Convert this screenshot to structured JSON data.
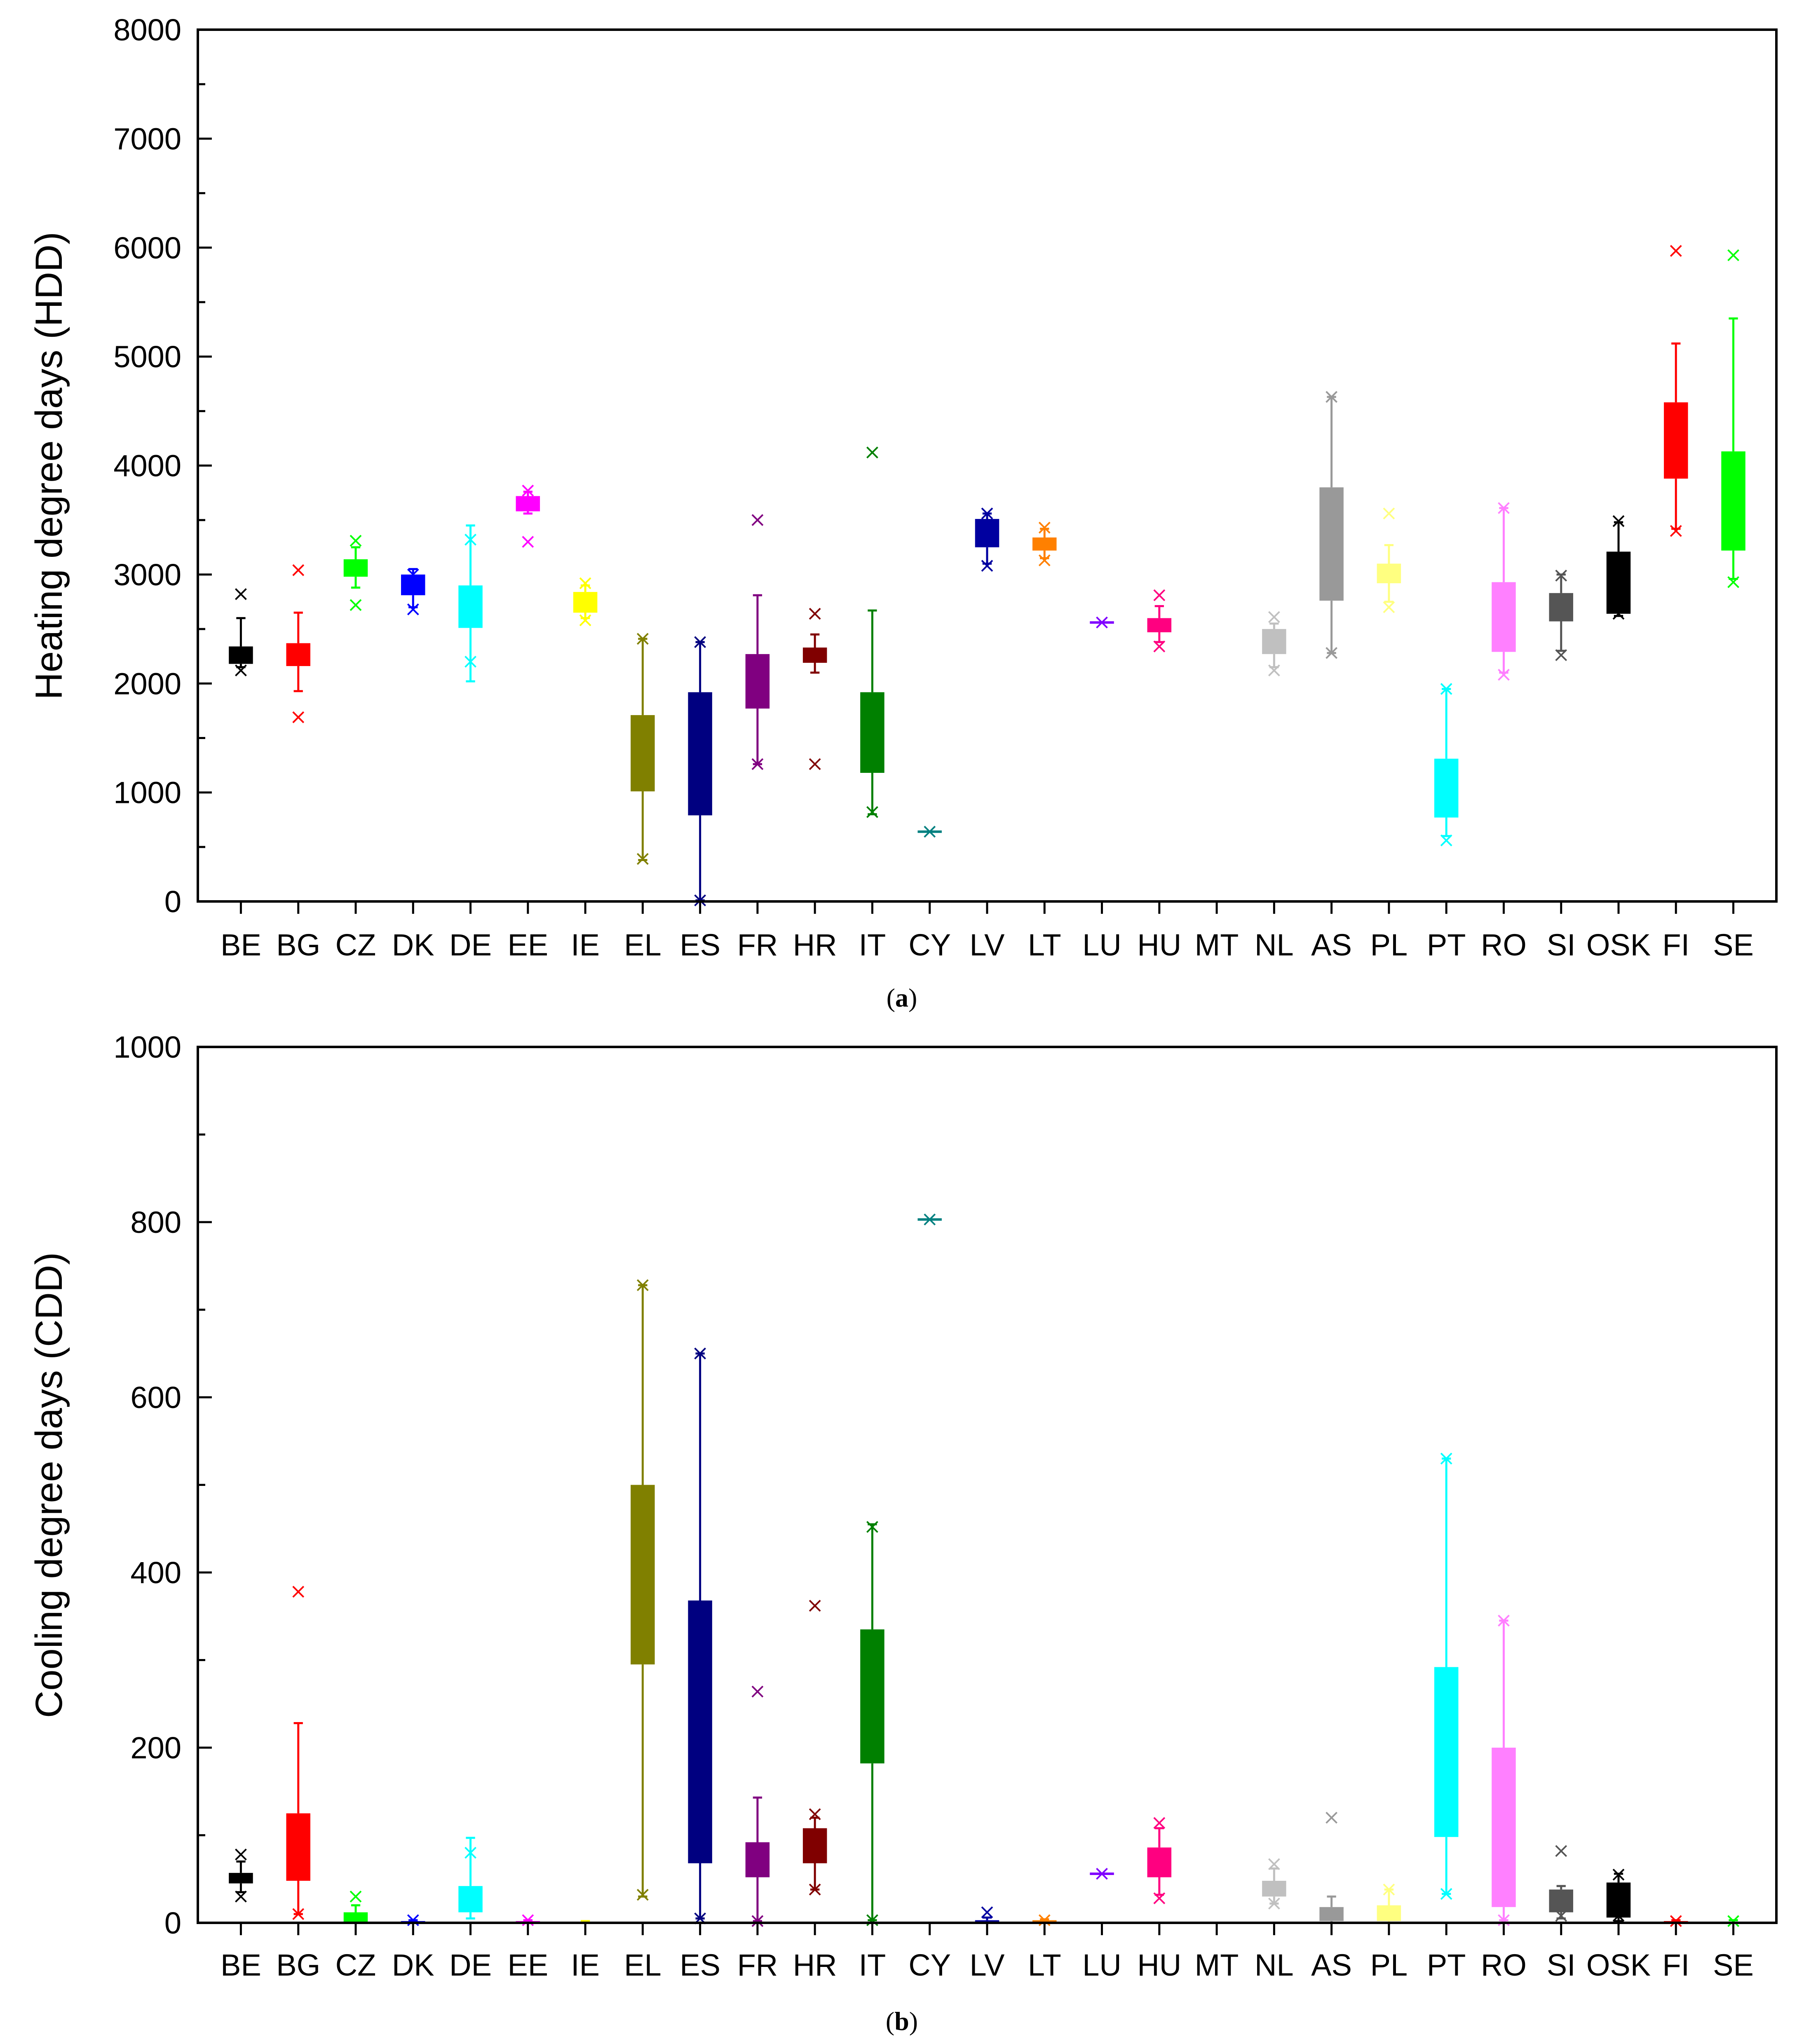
{
  "colors": {
    "BE": "#000000",
    "BG": "#ff0000",
    "CZ": "#00ff00",
    "DK": "#0000ff",
    "DE": "#00ffff",
    "EE": "#ff00ff",
    "IE": "#ffff00",
    "EL": "#808000",
    "ES": "#000080",
    "FR": "#800080",
    "HR": "#800000",
    "IT": "#008000",
    "CY": "#008080",
    "LV": "#0000a0",
    "LT": "#ff8000",
    "LU": "#8000ff",
    "HU": "#ff0080",
    "MT": "#808080",
    "NL": "#c0c0c0",
    "AS": "#999999",
    "PL": "#ffff80",
    "PT": "#00ffff",
    "RO": "#ff80ff",
    "SI": "#555555",
    "OSK": "#000000",
    "FI": "#ff0000",
    "SE": "#00ff00"
  },
  "chart_data": [
    {
      "type": "box",
      "caption_open": "(",
      "caption_bold": "a",
      "caption_close": ")",
      "ylabel": "Heating degree days (HDD)",
      "ylim": [
        0,
        8000
      ],
      "yticks": [
        "0",
        "1000",
        "2000",
        "3000",
        "4000",
        "5000",
        "6000",
        "7000",
        "8000"
      ],
      "categories": [
        "BE",
        "BG",
        "CZ",
        "DK",
        "DE",
        "EE",
        "IE",
        "EL",
        "ES",
        "FR",
        "HR",
        "IT",
        "CY",
        "LV",
        "LT",
        "LU",
        "HU",
        "MT",
        "NL",
        "AS",
        "PL",
        "PT",
        "RO",
        "SI",
        "OSK",
        "FI",
        "SE"
      ],
      "series": [
        {
          "cat": "BE",
          "q1": 2180,
          "q3": 2340,
          "wlo": 2150,
          "whi": 2600,
          "outliers": [
            2820,
            2120
          ]
        },
        {
          "cat": "BG",
          "q1": 2160,
          "q3": 2370,
          "wlo": 1930,
          "whi": 2650,
          "outliers": [
            3040,
            1690
          ]
        },
        {
          "cat": "CZ",
          "q1": 2980,
          "q3": 3140,
          "wlo": 2880,
          "whi": 3250,
          "outliers": [
            3310,
            2720
          ]
        },
        {
          "cat": "DK",
          "q1": 2810,
          "q3": 3000,
          "wlo": 2700,
          "whi": 3050,
          "outliers": [
            3000,
            2680
          ]
        },
        {
          "cat": "DE",
          "q1": 2510,
          "q3": 2900,
          "wlo": 2020,
          "whi": 3450,
          "outliers": [
            3320,
            2200
          ]
        },
        {
          "cat": "EE",
          "q1": 3580,
          "q3": 3720,
          "wlo": 3560,
          "whi": 3760,
          "outliers": [
            3770,
            3300
          ]
        },
        {
          "cat": "IE",
          "q1": 2650,
          "q3": 2840,
          "wlo": 2600,
          "whi": 2900,
          "outliers": [
            2920,
            2580
          ]
        },
        {
          "cat": "EL",
          "q1": 1010,
          "q3": 1710,
          "wlo": 380,
          "whi": 2410,
          "outliers": [
            2410,
            390
          ]
        },
        {
          "cat": "ES",
          "q1": 790,
          "q3": 1920,
          "wlo": 10,
          "whi": 2380,
          "outliers": [
            2380,
            10
          ]
        },
        {
          "cat": "FR",
          "q1": 1770,
          "q3": 2270,
          "wlo": 1260,
          "whi": 2810,
          "outliers": [
            3500,
            1260
          ]
        },
        {
          "cat": "HR",
          "q1": 2190,
          "q3": 2330,
          "wlo": 2100,
          "whi": 2450,
          "outliers": [
            2640,
            1260
          ]
        },
        {
          "cat": "IT",
          "q1": 1180,
          "q3": 1920,
          "wlo": 800,
          "whi": 2670,
          "outliers": [
            4120,
            820
          ]
        },
        {
          "cat": "CY",
          "q1": 640,
          "q3": 640,
          "wlo": 640,
          "whi": 640,
          "outliers": [
            640
          ]
        },
        {
          "cat": "LV",
          "q1": 3250,
          "q3": 3510,
          "wlo": 3100,
          "whi": 3560,
          "outliers": [
            3560,
            3080
          ]
        },
        {
          "cat": "LT",
          "q1": 3220,
          "q3": 3340,
          "wlo": 3150,
          "whi": 3420,
          "outliers": [
            3430,
            3130
          ]
        },
        {
          "cat": "LU",
          "q1": 2560,
          "q3": 2560,
          "wlo": 2560,
          "whi": 2560,
          "outliers": [
            2560
          ]
        },
        {
          "cat": "HU",
          "q1": 2470,
          "q3": 2600,
          "wlo": 2380,
          "whi": 2710,
          "outliers": [
            2810,
            2340
          ]
        },
        {
          "cat": "MT",
          "q1": null,
          "q3": null,
          "wlo": null,
          "whi": null,
          "outliers": []
        },
        {
          "cat": "NL",
          "q1": 2270,
          "q3": 2500,
          "wlo": 2150,
          "whi": 2550,
          "outliers": [
            2610,
            2120
          ]
        },
        {
          "cat": "AS",
          "q1": 2760,
          "q3": 3800,
          "wlo": 2280,
          "whi": 4630,
          "outliers": [
            4630,
            2280
          ]
        },
        {
          "cat": "PL",
          "q1": 2920,
          "q3": 3100,
          "wlo": 2750,
          "whi": 3270,
          "outliers": [
            3560,
            2700
          ]
        },
        {
          "cat": "PT",
          "q1": 770,
          "q3": 1310,
          "wlo": 600,
          "whi": 1950,
          "outliers": [
            1950,
            560
          ]
        },
        {
          "cat": "RO",
          "q1": 2290,
          "q3": 2930,
          "wlo": 2100,
          "whi": 3610,
          "outliers": [
            3610,
            2080
          ]
        },
        {
          "cat": "SI",
          "q1": 2570,
          "q3": 2830,
          "wlo": 2300,
          "whi": 3000,
          "outliers": [
            2990,
            2260
          ]
        },
        {
          "cat": "OSK",
          "q1": 2640,
          "q3": 3210,
          "wlo": 2620,
          "whi": 3480,
          "outliers": [
            3490,
            2640
          ]
        },
        {
          "cat": "FI",
          "q1": 3880,
          "q3": 4580,
          "wlo": 3420,
          "whi": 5120,
          "outliers": [
            5970,
            3400
          ]
        },
        {
          "cat": "SE",
          "q1": 3220,
          "q3": 4130,
          "wlo": 2960,
          "whi": 5350,
          "outliers": [
            5930,
            2930
          ]
        }
      ]
    },
    {
      "type": "box",
      "caption_open": "(",
      "caption_bold": "b",
      "caption_close": ")",
      "ylabel": "Cooling degree days (CDD)",
      "ylim": [
        0,
        1000
      ],
      "yticks": [
        "0",
        "200",
        "400",
        "600",
        "800",
        "1000"
      ],
      "categories": [
        "BE",
        "BG",
        "CZ",
        "DK",
        "DE",
        "EE",
        "IE",
        "EL",
        "ES",
        "FR",
        "HR",
        "IT",
        "CY",
        "LV",
        "LT",
        "LU",
        "HU",
        "MT",
        "NL",
        "AS",
        "PL",
        "PT",
        "RO",
        "SI",
        "OSK",
        "FI",
        "SE"
      ],
      "series": [
        {
          "cat": "BE",
          "q1": 45,
          "q3": 57,
          "wlo": 35,
          "whi": 70,
          "outliers": [
            78,
            30
          ]
        },
        {
          "cat": "BG",
          "q1": 48,
          "q3": 125,
          "wlo": 10,
          "whi": 228,
          "outliers": [
            378,
            10
          ]
        },
        {
          "cat": "CZ",
          "q1": 1,
          "q3": 12,
          "wlo": 0,
          "whi": 20,
          "outliers": [
            30
          ]
        },
        {
          "cat": "DK",
          "q1": 0,
          "q3": 2,
          "wlo": 0,
          "whi": 3,
          "outliers": [
            3
          ]
        },
        {
          "cat": "DE",
          "q1": 12,
          "q3": 42,
          "wlo": 5,
          "whi": 97,
          "outliers": [
            80
          ]
        },
        {
          "cat": "EE",
          "q1": 0,
          "q3": 2,
          "wlo": 0,
          "whi": 3,
          "outliers": [
            3
          ]
        },
        {
          "cat": "IE",
          "q1": 0,
          "q3": 1,
          "wlo": 0,
          "whi": 2,
          "outliers": []
        },
        {
          "cat": "EL",
          "q1": 295,
          "q3": 500,
          "wlo": 30,
          "whi": 728,
          "outliers": [
            728,
            32
          ]
        },
        {
          "cat": "ES",
          "q1": 68,
          "q3": 368,
          "wlo": 5,
          "whi": 650,
          "outliers": [
            650,
            5
          ]
        },
        {
          "cat": "FR",
          "q1": 52,
          "q3": 92,
          "wlo": 2,
          "whi": 143,
          "outliers": [
            264,
            2
          ]
        },
        {
          "cat": "HR",
          "q1": 68,
          "q3": 108,
          "wlo": 38,
          "whi": 120,
          "outliers": [
            362,
            124,
            38
          ]
        },
        {
          "cat": "IT",
          "q1": 182,
          "q3": 335,
          "wlo": 3,
          "whi": 455,
          "outliers": [
            452,
            3
          ]
        },
        {
          "cat": "CY",
          "q1": 803,
          "q3": 803,
          "wlo": 803,
          "whi": 803,
          "outliers": [
            803
          ]
        },
        {
          "cat": "LV",
          "q1": 0,
          "q3": 3,
          "wlo": 0,
          "whi": 6,
          "outliers": [
            12
          ]
        },
        {
          "cat": "LT",
          "q1": 0,
          "q3": 3,
          "wlo": 0,
          "whi": 4,
          "outliers": [
            3
          ]
        },
        {
          "cat": "LU",
          "q1": 56,
          "q3": 56,
          "wlo": 56,
          "whi": 56,
          "outliers": [
            56
          ]
        },
        {
          "cat": "HU",
          "q1": 52,
          "q3": 86,
          "wlo": 32,
          "whi": 108,
          "outliers": [
            114,
            28
          ]
        },
        {
          "cat": "MT",
          "q1": null,
          "q3": null,
          "wlo": null,
          "whi": null,
          "outliers": []
        },
        {
          "cat": "NL",
          "q1": 30,
          "q3": 48,
          "wlo": 22,
          "whi": 62,
          "outliers": [
            67,
            22
          ]
        },
        {
          "cat": "AS",
          "q1": 2,
          "q3": 18,
          "wlo": 0,
          "whi": 30,
          "outliers": [
            120
          ]
        },
        {
          "cat": "PL",
          "q1": 2,
          "q3": 20,
          "wlo": 0,
          "whi": 38,
          "outliers": [
            38
          ]
        },
        {
          "cat": "PT",
          "q1": 98,
          "q3": 292,
          "wlo": 33,
          "whi": 530,
          "outliers": [
            530,
            33
          ]
        },
        {
          "cat": "RO",
          "q1": 18,
          "q3": 200,
          "wlo": 3,
          "whi": 345,
          "outliers": [
            345,
            3
          ]
        },
        {
          "cat": "SI",
          "q1": 12,
          "q3": 38,
          "wlo": 5,
          "whi": 42,
          "outliers": [
            82,
            8
          ]
        },
        {
          "cat": "OSK",
          "q1": 6,
          "q3": 46,
          "wlo": 2,
          "whi": 56,
          "outliers": [
            55,
            8
          ]
        },
        {
          "cat": "FI",
          "q1": 0,
          "q3": 2,
          "wlo": 0,
          "whi": 3,
          "outliers": [
            2
          ]
        },
        {
          "cat": "SE",
          "q1": 0,
          "q3": 1,
          "wlo": 0,
          "whi": 3,
          "outliers": [
            2
          ]
        }
      ]
    }
  ]
}
